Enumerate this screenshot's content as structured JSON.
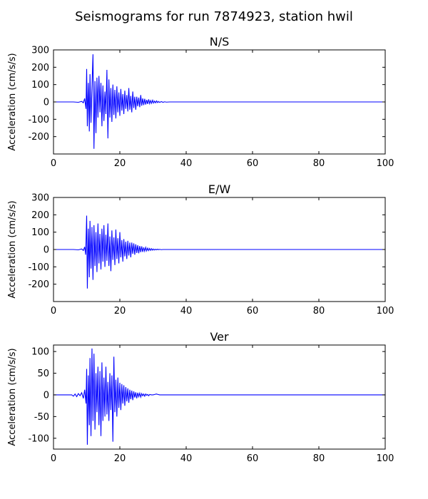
{
  "figure": {
    "title": "Seismograms for run 7874923, station hwil"
  },
  "chart_data": [
    {
      "type": "line",
      "title": "N/S",
      "xlabel": "",
      "ylabel": "Acceleration (cm/s/s)",
      "xlim": [
        0,
        100
      ],
      "ylim": [
        -300,
        300
      ],
      "xticks": [
        0,
        20,
        40,
        60,
        80,
        100
      ],
      "yticks": [
        -200,
        -100,
        0,
        100,
        200,
        300
      ],
      "grid": false,
      "line_color": "#0000ff",
      "series": [
        {
          "x": [
            0,
            6,
            7.5,
            8.5,
            9.0,
            9.4,
            9.8,
            10.0,
            10.2,
            10.5,
            10.8,
            11.0,
            11.3,
            11.6,
            11.9,
            12.2,
            12.5,
            12.8,
            13.1,
            13.4,
            13.7,
            14.0,
            14.3,
            14.6,
            14.9,
            15.2,
            15.5,
            15.8,
            16.1,
            16.4,
            16.7,
            17.0,
            17.3,
            17.6,
            17.9,
            18.2,
            18.5,
            18.8,
            19.1,
            19.4,
            19.7,
            20.0,
            20.3,
            20.6,
            20.9,
            21.2,
            21.5,
            21.8,
            22.1,
            22.4,
            22.7,
            23.0,
            23.3,
            23.6,
            23.9,
            24.2,
            24.5,
            24.8,
            25.1,
            25.4,
            25.7,
            26.0,
            26.3,
            26.6,
            26.9,
            27.2,
            27.5,
            27.8,
            28.1,
            28.4,
            28.7,
            29.0,
            29.3,
            29.6,
            29.9,
            30.2,
            30.5,
            30.8,
            31.1,
            31.4,
            31.7,
            32.0,
            32.5,
            33.0,
            33.5,
            34.0,
            35.0,
            40,
            60,
            80,
            100
          ],
          "y": [
            0,
            0,
            -2,
            3,
            -5,
            20,
            -40,
            190,
            -140,
            110,
            -170,
            160,
            -120,
            90,
            275,
            -270,
            120,
            -180,
            140,
            -90,
            150,
            -60,
            110,
            -140,
            95,
            -110,
            60,
            -70,
            185,
            -210,
            130,
            -90,
            80,
            -115,
            100,
            -75,
            70,
            -95,
            90,
            -60,
            55,
            -80,
            75,
            -50,
            45,
            -70,
            65,
            -40,
            40,
            -55,
            80,
            -45,
            35,
            -60,
            60,
            -35,
            30,
            -45,
            30,
            -25,
            25,
            -30,
            40,
            -22,
            20,
            -18,
            18,
            -15,
            12,
            -12,
            15,
            -10,
            8,
            -8,
            10,
            -6,
            5,
            -5,
            6,
            -4,
            3,
            -3,
            2,
            -2,
            1,
            -1,
            0,
            0,
            0,
            0,
            0
          ]
        }
      ]
    },
    {
      "type": "line",
      "title": "E/W",
      "xlabel": "",
      "ylabel": "Acceleration (cm/s/s)",
      "xlim": [
        0,
        100
      ],
      "ylim": [
        -300,
        300
      ],
      "xticks": [
        0,
        20,
        40,
        60,
        80,
        100
      ],
      "yticks": [
        -200,
        -100,
        0,
        100,
        200,
        300
      ],
      "grid": false,
      "line_color": "#0000ff",
      "series": [
        {
          "x": [
            0,
            6,
            7.5,
            8.5,
            9.0,
            9.4,
            9.7,
            10.0,
            10.2,
            10.5,
            10.8,
            11.0,
            11.3,
            11.6,
            11.9,
            12.2,
            12.5,
            12.8,
            13.1,
            13.4,
            13.7,
            14.0,
            14.3,
            14.6,
            14.9,
            15.2,
            15.5,
            15.8,
            16.1,
            16.4,
            16.7,
            17.0,
            17.3,
            17.6,
            17.9,
            18.2,
            18.5,
            18.8,
            19.1,
            19.4,
            19.7,
            20.0,
            20.3,
            20.6,
            20.9,
            21.2,
            21.5,
            21.8,
            22.1,
            22.4,
            22.7,
            23.0,
            23.3,
            23.6,
            23.9,
            24.2,
            24.5,
            24.8,
            25.1,
            25.4,
            25.7,
            26.0,
            26.3,
            26.6,
            26.9,
            27.2,
            27.5,
            27.8,
            28.1,
            28.4,
            28.7,
            29.0,
            29.3,
            29.6,
            29.9,
            30.2,
            30.5,
            30.8,
            31.1,
            31.4,
            31.7,
            32.0,
            32.5,
            33.0,
            33.5,
            34.0,
            35.0,
            40,
            60,
            80,
            100
          ],
          "y": [
            0,
            0,
            -2,
            3,
            -6,
            15,
            -30,
            195,
            -225,
            120,
            -160,
            165,
            -110,
            130,
            -175,
            140,
            -95,
            100,
            -130,
            150,
            -80,
            90,
            -115,
            120,
            -70,
            140,
            -100,
            85,
            -65,
            150,
            -95,
            75,
            -125,
            110,
            -60,
            70,
            -90,
            115,
            -55,
            65,
            -80,
            100,
            -45,
            55,
            -70,
            60,
            -40,
            45,
            -55,
            50,
            -35,
            40,
            -45,
            40,
            -25,
            35,
            -30,
            30,
            -20,
            25,
            -22,
            20,
            -15,
            18,
            -14,
            12,
            -10,
            12,
            -8,
            8,
            -6,
            6,
            -5,
            5,
            -4,
            3,
            -3,
            2,
            -2,
            2,
            -1,
            1,
            -1,
            0,
            0,
            0,
            0,
            0,
            0,
            0,
            0
          ]
        }
      ]
    },
    {
      "type": "line",
      "title": "Ver",
      "xlabel": "",
      "ylabel": "Acceleration (cm/s/s)",
      "xlim": [
        0,
        100
      ],
      "ylim": [
        -125,
        115
      ],
      "xticks": [
        0,
        20,
        40,
        60,
        80,
        100
      ],
      "yticks": [
        -100,
        -50,
        0,
        50,
        100
      ],
      "grid": false,
      "line_color": "#0000ff",
      "series": [
        {
          "x": [
            0,
            5.5,
            6.0,
            6.5,
            7.0,
            7.5,
            8.0,
            8.5,
            9.0,
            9.4,
            9.8,
            10.0,
            10.2,
            10.5,
            10.8,
            11.0,
            11.3,
            11.6,
            11.9,
            12.2,
            12.5,
            12.8,
            13.1,
            13.4,
            13.7,
            14.0,
            14.3,
            14.6,
            14.9,
            15.2,
            15.5,
            15.8,
            16.1,
            16.4,
            16.7,
            17.0,
            17.3,
            17.6,
            17.9,
            18.2,
            18.5,
            18.8,
            19.1,
            19.4,
            19.7,
            20.0,
            20.3,
            20.6,
            20.9,
            21.2,
            21.5,
            21.8,
            22.1,
            22.4,
            22.7,
            23.0,
            23.3,
            23.6,
            23.9,
            24.2,
            24.5,
            24.8,
            25.1,
            25.4,
            25.7,
            26.0,
            26.3,
            26.6,
            26.9,
            27.2,
            27.5,
            27.8,
            28.1,
            28.4,
            28.7,
            29.0,
            29.5,
            30.0,
            30.5,
            31.0,
            31.5,
            32.0,
            33.0,
            34.0,
            35.0,
            40,
            60,
            80,
            100
          ],
          "y": [
            0,
            0,
            -3,
            2,
            -4,
            3,
            -2,
            5,
            -8,
            12,
            -20,
            60,
            -115,
            45,
            -70,
            85,
            -95,
            107,
            -60,
            95,
            -80,
            50,
            -40,
            65,
            -70,
            55,
            -95,
            75,
            -60,
            40,
            -50,
            65,
            -45,
            30,
            -60,
            50,
            -35,
            45,
            -108,
            88,
            -40,
            35,
            -50,
            40,
            -30,
            28,
            -35,
            25,
            -20,
            22,
            -25,
            18,
            -15,
            15,
            -18,
            12,
            -10,
            10,
            -12,
            8,
            -6,
            6,
            -8,
            5,
            -4,
            4,
            -5,
            3,
            -2,
            2,
            -3,
            2,
            -1,
            1,
            -2,
            1,
            0,
            0,
            1,
            2,
            1,
            0,
            0,
            0,
            0,
            0,
            0,
            0,
            0
          ]
        }
      ]
    }
  ]
}
